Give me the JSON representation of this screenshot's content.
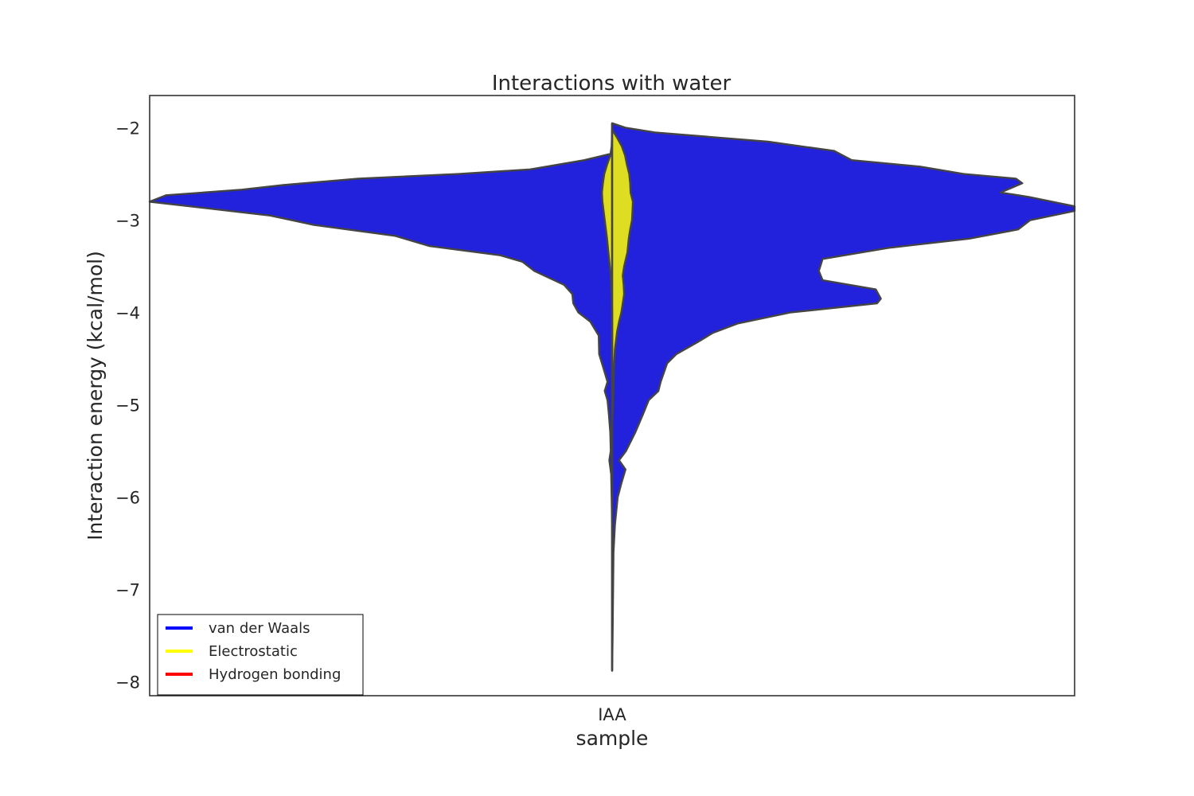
{
  "chart_data": {
    "type": "violin",
    "title": "Interactions with water",
    "xlabel": "sample",
    "ylabel": "Interaction energy (kcal/mol)",
    "categories": [
      "IAA"
    ],
    "ylim": [
      -8.15,
      -1.65
    ],
    "yticks": [
      -2,
      -3,
      -4,
      -5,
      -6,
      -7,
      -8
    ],
    "ytick_labels": [
      "−2",
      "−3",
      "−4",
      "−5",
      "−6",
      "−7",
      "−8"
    ],
    "grid": false,
    "legend": {
      "placement": "lower-left",
      "entries": [
        {
          "label": "van der Waals",
          "color": "#0000ff"
        },
        {
          "label": "Electrostatic",
          "color": "#ffff00"
        },
        {
          "label": "Hydrogen bonding",
          "color": "#ff0000"
        }
      ]
    },
    "series": [
      {
        "name": "van der Waals",
        "fill": "#2222dd",
        "left_half": [
          [
            -2.2,
            0.0
          ],
          [
            -2.28,
            0.002
          ],
          [
            -2.35,
            0.06
          ],
          [
            -2.45,
            0.177
          ],
          [
            -2.5,
            0.332
          ],
          [
            -2.55,
            0.549
          ],
          [
            -2.62,
            0.711
          ],
          [
            -2.67,
            0.801
          ],
          [
            -2.73,
            0.964
          ],
          [
            -2.8,
            1.0
          ],
          [
            -2.95,
            0.739
          ],
          [
            -3.05,
            0.646
          ],
          [
            -3.17,
            0.469
          ],
          [
            -3.28,
            0.395
          ],
          [
            -3.38,
            0.242
          ],
          [
            -3.45,
            0.194
          ],
          [
            -3.55,
            0.168
          ],
          [
            -3.7,
            0.104
          ],
          [
            -3.8,
            0.086
          ],
          [
            -3.9,
            0.084
          ],
          [
            -4.0,
            0.073
          ],
          [
            -4.1,
            0.047
          ],
          [
            -4.25,
            0.029
          ],
          [
            -4.45,
            0.028
          ],
          [
            -4.6,
            0.019
          ],
          [
            -4.75,
            0.01
          ],
          [
            -4.85,
            0.016
          ],
          [
            -4.95,
            0.01
          ],
          [
            -5.1,
            0.007
          ],
          [
            -5.3,
            0.004
          ],
          [
            -5.5,
            0.003
          ],
          [
            -5.6,
            0.006
          ],
          [
            -5.75,
            0.002
          ],
          [
            -6.0,
            0.001
          ],
          [
            -6.3,
            0.0
          ]
        ],
        "right_half": [
          [
            -1.95,
            0.0
          ],
          [
            -2.0,
            0.03
          ],
          [
            -2.05,
            0.093
          ],
          [
            -2.15,
            0.337
          ],
          [
            -2.25,
            0.48
          ],
          [
            -2.35,
            0.518
          ],
          [
            -2.42,
            0.666
          ],
          [
            -2.5,
            0.76
          ],
          [
            -2.55,
            0.873
          ],
          [
            -2.6,
            0.887
          ],
          [
            -2.7,
            0.84
          ],
          [
            -2.75,
            0.902
          ],
          [
            -2.85,
            1.0
          ],
          [
            -2.9,
            1.0
          ],
          [
            -3.0,
            0.904
          ],
          [
            -3.1,
            0.878
          ],
          [
            -3.2,
            0.772
          ],
          [
            -3.3,
            0.597
          ],
          [
            -3.42,
            0.455
          ],
          [
            -3.55,
            0.447
          ],
          [
            -3.65,
            0.455
          ],
          [
            -3.75,
            0.57
          ],
          [
            -3.85,
            0.581
          ],
          [
            -3.9,
            0.573
          ],
          [
            -4.0,
            0.385
          ],
          [
            -4.12,
            0.271
          ],
          [
            -4.22,
            0.218
          ],
          [
            -4.32,
            0.185
          ],
          [
            -4.45,
            0.139
          ],
          [
            -4.55,
            0.119
          ],
          [
            -4.75,
            0.105
          ],
          [
            -4.85,
            0.1
          ],
          [
            -4.95,
            0.079
          ],
          [
            -5.1,
            0.067
          ],
          [
            -5.3,
            0.05
          ],
          [
            -5.5,
            0.03
          ],
          [
            -5.6,
            0.015
          ],
          [
            -5.7,
            0.029
          ],
          [
            -5.85,
            0.02
          ],
          [
            -6.0,
            0.012
          ],
          [
            -6.3,
            0.006
          ],
          [
            -6.6,
            0.003
          ],
          [
            -7.0,
            0.002
          ],
          [
            -7.5,
            0.001
          ],
          [
            -7.88,
            0.0
          ]
        ]
      },
      {
        "name": "Electrostatic",
        "fill": "#dddd22",
        "left_half": [
          [
            -2.02,
            0.0
          ],
          [
            -2.2,
            0.001
          ],
          [
            -2.3,
            0.004
          ],
          [
            -2.4,
            0.011
          ],
          [
            -2.5,
            0.017
          ],
          [
            -2.6,
            0.02
          ],
          [
            -2.7,
            0.022
          ],
          [
            -2.8,
            0.021
          ],
          [
            -3.0,
            0.016
          ],
          [
            -3.2,
            0.011
          ],
          [
            -3.4,
            0.007
          ],
          [
            -3.6,
            0.003
          ],
          [
            -3.8,
            0.001
          ],
          [
            -4.0,
            0.0
          ]
        ],
        "right_half": [
          [
            -2.02,
            0.0
          ],
          [
            -2.1,
            0.01
          ],
          [
            -2.2,
            0.021
          ],
          [
            -2.3,
            0.028
          ],
          [
            -2.4,
            0.032
          ],
          [
            -2.5,
            0.037
          ],
          [
            -2.6,
            0.039
          ],
          [
            -2.7,
            0.04
          ],
          [
            -2.8,
            0.045
          ],
          [
            -2.9,
            0.044
          ],
          [
            -3.0,
            0.043
          ],
          [
            -3.1,
            0.039
          ],
          [
            -3.2,
            0.036
          ],
          [
            -3.35,
            0.033
          ],
          [
            -3.5,
            0.026
          ],
          [
            -3.6,
            0.023
          ],
          [
            -3.7,
            0.025
          ],
          [
            -3.8,
            0.026
          ],
          [
            -3.9,
            0.023
          ],
          [
            -4.0,
            0.02
          ],
          [
            -4.1,
            0.015
          ],
          [
            -4.2,
            0.011
          ],
          [
            -4.4,
            0.006
          ],
          [
            -4.6,
            0.004
          ],
          [
            -4.8,
            0.003
          ],
          [
            -5.0,
            0.002
          ],
          [
            -5.2,
            0.0
          ]
        ]
      }
    ]
  }
}
